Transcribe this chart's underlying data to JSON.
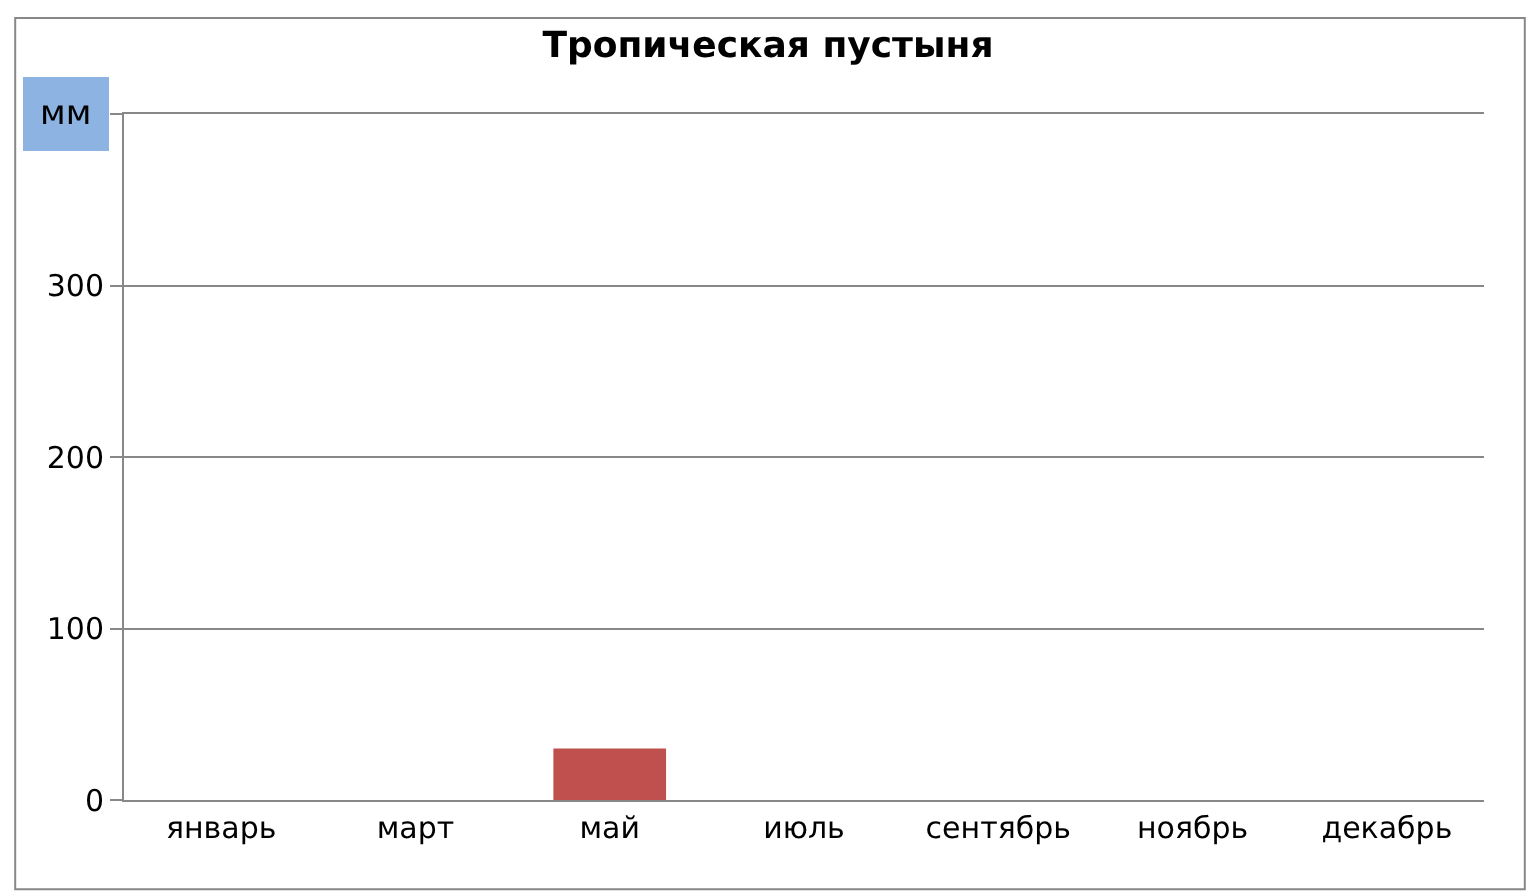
{
  "chart_data": {
    "type": "bar",
    "title": "Тропическая пустыня",
    "ylabel": "мм",
    "categories": [
      "январь",
      "март",
      "май",
      "июль",
      "сентябрь",
      "ноябрь",
      "декабрь"
    ],
    "values": [
      0,
      0,
      30,
      0,
      0,
      0,
      0
    ],
    "color": "#c0504d",
    "ylim": [
      0,
      400
    ],
    "yticks": [
      0,
      100,
      200,
      300,
      {
        "value": 400,
        "label": null
      }
    ],
    "grid": "y"
  }
}
